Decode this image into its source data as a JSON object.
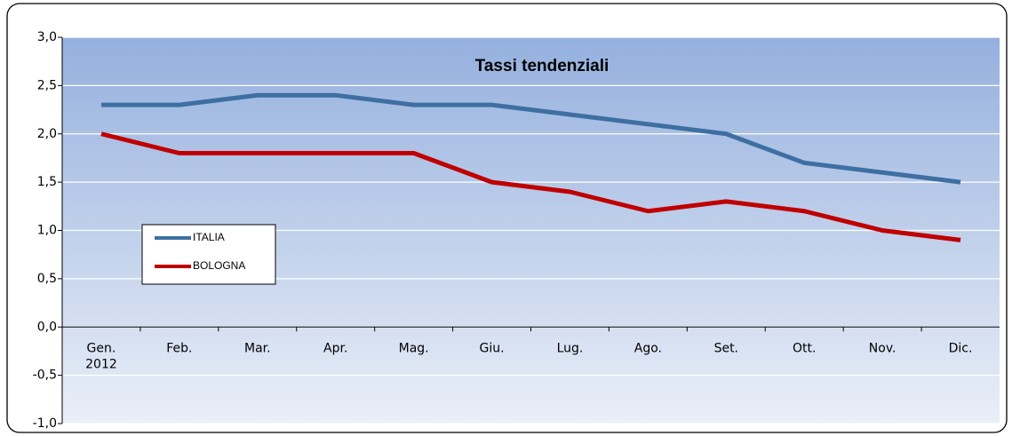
{
  "chart_data": {
    "type": "line",
    "title": "Tassi tendenziali",
    "categories": [
      "Gen.\n2012",
      "Feb.",
      "Mar.",
      "Apr.",
      "Mag.",
      "Giu.",
      "Lug.",
      "Ago.",
      "Set.",
      "Ott.",
      "Nov.",
      "Dic."
    ],
    "series": [
      {
        "name": "ITALIA",
        "color": "#3e6fa3",
        "values": [
          2.3,
          2.3,
          2.4,
          2.4,
          2.3,
          2.3,
          2.2,
          2.1,
          2.0,
          1.7,
          1.6,
          1.5
        ]
      },
      {
        "name": "BOLOGNA",
        "color": "#c00000",
        "values": [
          2.0,
          1.8,
          1.8,
          1.8,
          1.8,
          1.5,
          1.4,
          1.2,
          1.3,
          1.2,
          1.0,
          0.9
        ]
      }
    ],
    "ylim": [
      -1,
      3
    ],
    "yticks": [
      {
        "value": -1,
        "label": "-1,0"
      },
      {
        "value": -0.5,
        "label": "-0,5"
      },
      {
        "value": 0,
        "label": "0,0"
      },
      {
        "value": 0.5,
        "label": "0,5"
      },
      {
        "value": 1,
        "label": "1,0"
      },
      {
        "value": 1.5,
        "label": "1,5"
      },
      {
        "value": 2,
        "label": "2,0"
      },
      {
        "value": 2.5,
        "label": "2,5"
      },
      {
        "value": 3,
        "label": "3,0"
      }
    ],
    "grid": true,
    "legend": "left"
  }
}
